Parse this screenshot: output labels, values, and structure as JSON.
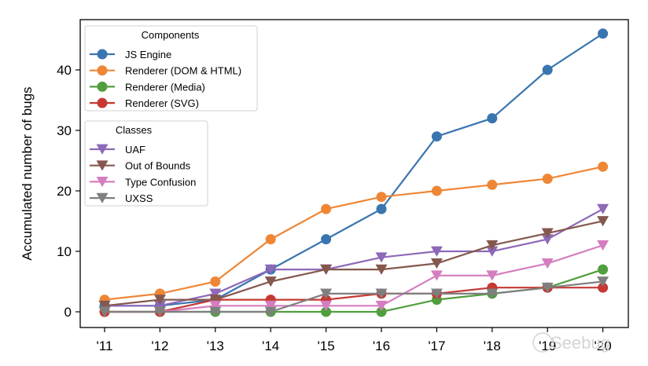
{
  "chart_data": {
    "type": "line",
    "title": "",
    "xlabel": "",
    "ylabel": "Accumulated number of bugs",
    "categories": [
      "'11",
      "'12",
      "'13",
      "'14",
      "'15",
      "'16",
      "'17",
      "'18",
      "'19",
      "'20"
    ],
    "yticks": [
      0,
      10,
      20,
      30,
      40
    ],
    "ylim": [
      -2.5,
      48.5
    ],
    "grid": false,
    "legends": [
      {
        "title": "Components",
        "placement": "top-left",
        "series": [
          {
            "name": "JS Engine",
            "color": "#3a75b0",
            "marker": "circle",
            "values": [
              1,
              1,
              2,
              7,
              12,
              17,
              29,
              32,
              40,
              46
            ]
          },
          {
            "name": "Renderer (DOM & HTML)",
            "color": "#ef8636",
            "marker": "circle",
            "values": [
              2,
              3,
              5,
              12,
              17,
              19,
              20,
              21,
              22,
              24
            ]
          },
          {
            "name": "Renderer (Media)",
            "color": "#519e3e",
            "marker": "circle",
            "values": [
              0,
              0,
              0,
              0,
              0,
              0,
              2,
              3,
              4,
              7
            ]
          },
          {
            "name": "Renderer (SVG)",
            "color": "#c53932",
            "marker": "circle",
            "values": [
              0,
              0,
              2,
              2,
              2,
              3,
              3,
              4,
              4,
              4
            ]
          }
        ]
      },
      {
        "title": "Classes",
        "placement": "upper-left",
        "series": [
          {
            "name": "UAF",
            "color": "#8d69b8",
            "marker": "triangle-down",
            "values": [
              1,
              1,
              3,
              7,
              7,
              9,
              10,
              10,
              12,
              17
            ]
          },
          {
            "name": "Out of Bounds",
            "color": "#84584e",
            "marker": "triangle-down",
            "values": [
              1,
              2,
              2,
              5,
              7,
              7,
              8,
              11,
              13,
              15
            ]
          },
          {
            "name": "Type Confusion",
            "color": "#d57dbf",
            "marker": "triangle-down",
            "values": [
              0,
              0,
              1,
              1,
              1,
              1,
              6,
              6,
              8,
              11
            ]
          },
          {
            "name": "UXSS",
            "color": "#7f7f7f",
            "marker": "triangle-down",
            "values": [
              0,
              0,
              0,
              0,
              3,
              3,
              3,
              3,
              4,
              5
            ]
          }
        ]
      }
    ]
  },
  "watermark": "Seebug"
}
